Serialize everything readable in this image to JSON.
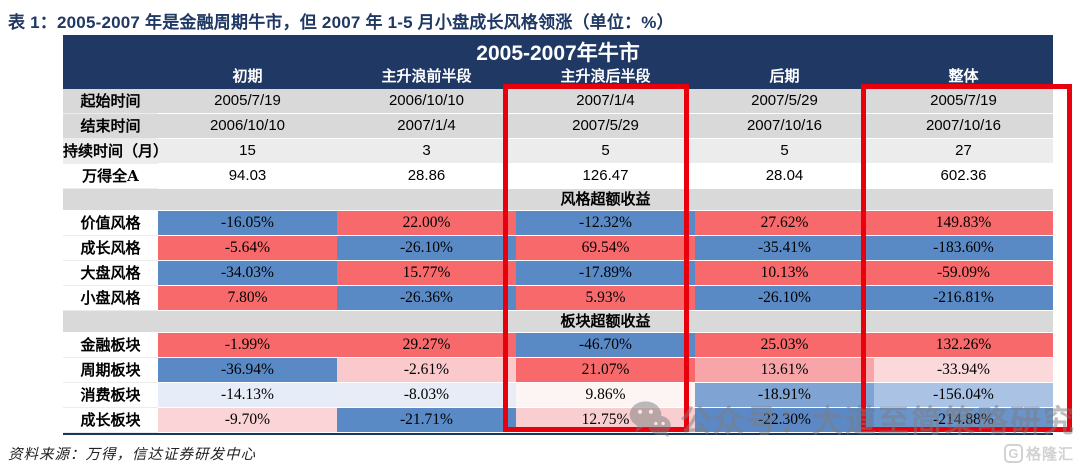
{
  "page_title": "表 1：2005-2007 年是金融周期牛市，但 2007 年 1-5 月小盘成长风格领涨（单位：%）",
  "table": {
    "header_title": "2005-2007年牛市",
    "column_headers": [
      "初期",
      "主升浪前半段",
      "主升浪后半段",
      "后期",
      "整体"
    ],
    "info_rows": [
      {
        "label": "起始时间",
        "bg": "#D9D9D9",
        "values": [
          "2005/7/19",
          "2006/10/10",
          "2007/1/4",
          "2007/5/29",
          "2005/7/19"
        ]
      },
      {
        "label": "结束时间",
        "bg": "#D9D9D9",
        "values": [
          "2006/10/10",
          "2007/1/4",
          "2007/5/29",
          "2007/10/16",
          "2007/10/16"
        ]
      },
      {
        "label": "持续时间（月）",
        "bg": "#ECECEC",
        "values": [
          "15",
          "3",
          "5",
          "5",
          "27"
        ]
      },
      {
        "label": "万得全A",
        "bg": "#FFFFFF",
        "values": [
          "94.03",
          "28.86",
          "126.47",
          "28.04",
          "602.36"
        ]
      }
    ],
    "style_section": {
      "title": "风格超额收益",
      "rows": [
        {
          "label": "价值风格",
          "cells": [
            {
              "text": "-16.05%",
              "bg": "#5A8AC6"
            },
            {
              "text": "22.00%",
              "bg": "#F8696B"
            },
            {
              "text": "-12.32%",
              "bg": "#5A8AC6"
            },
            {
              "text": "27.62%",
              "bg": "#F8696B"
            },
            {
              "text": "149.83%",
              "bg": "#F8696B"
            }
          ]
        },
        {
          "label": "成长风格",
          "cells": [
            {
              "text": "-5.64%",
              "bg": "#F8696B"
            },
            {
              "text": "-26.10%",
              "bg": "#5A8AC6"
            },
            {
              "text": "69.54%",
              "bg": "#F8696B"
            },
            {
              "text": "-35.41%",
              "bg": "#5A8AC6"
            },
            {
              "text": "-183.60%",
              "bg": "#5A8AC6"
            }
          ]
        },
        {
          "label": "大盘风格",
          "cells": [
            {
              "text": "-34.03%",
              "bg": "#5A8AC6"
            },
            {
              "text": "15.77%",
              "bg": "#F8696B"
            },
            {
              "text": "-17.89%",
              "bg": "#5A8AC6"
            },
            {
              "text": "10.13%",
              "bg": "#F8696B"
            },
            {
              "text": "-59.09%",
              "bg": "#F8696B"
            }
          ]
        },
        {
          "label": "小盘风格",
          "cells": [
            {
              "text": "7.80%",
              "bg": "#F8696B"
            },
            {
              "text": "-26.36%",
              "bg": "#5A8AC6"
            },
            {
              "text": "5.93%",
              "bg": "#F8696B"
            },
            {
              "text": "-26.10%",
              "bg": "#5A8AC6"
            },
            {
              "text": "-216.81%",
              "bg": "#5A8AC6"
            }
          ]
        }
      ]
    },
    "sector_section": {
      "title": "板块超额收益",
      "rows": [
        {
          "label": "金融板块",
          "cells": [
            {
              "text": "-1.99%",
              "bg": "#F8696B"
            },
            {
              "text": "29.27%",
              "bg": "#F8696B"
            },
            {
              "text": "-46.70%",
              "bg": "#5A8AC6"
            },
            {
              "text": "25.03%",
              "bg": "#F8696B"
            },
            {
              "text": "132.26%",
              "bg": "#F8696B"
            }
          ]
        },
        {
          "label": "周期板块",
          "cells": [
            {
              "text": "-36.94%",
              "bg": "#5A8AC6"
            },
            {
              "text": "-2.61%",
              "bg": "#F9C9CC"
            },
            {
              "text": "21.07%",
              "bg": "#F8696B"
            },
            {
              "text": "13.61%",
              "bg": "#F7A5A9"
            },
            {
              "text": "-33.94%",
              "bg": "#FBD9DB"
            }
          ]
        },
        {
          "label": "消费板块",
          "cells": [
            {
              "text": "-14.13%",
              "bg": "#E7EDF8"
            },
            {
              "text": "-8.03%",
              "bg": "#E7ECF7"
            },
            {
              "text": "9.86%",
              "bg": "#FDF4F4"
            },
            {
              "text": "-18.91%",
              "bg": "#7FA4D3"
            },
            {
              "text": "-156.04%",
              "bg": "#AAC2E3"
            }
          ]
        },
        {
          "label": "成长板块",
          "cells": [
            {
              "text": "-9.70%",
              "bg": "#FAD4D6"
            },
            {
              "text": "-21.71%",
              "bg": "#5A8AC6"
            },
            {
              "text": "12.75%",
              "bg": "#F9CED0"
            },
            {
              "text": "-22.30%",
              "bg": "#5C89C5"
            },
            {
              "text": "-214.88%",
              "bg": "#6B94CB"
            }
          ]
        }
      ]
    }
  },
  "footer": {
    "source": "资料来源：万得，信达证券研发中心"
  },
  "watermark": {
    "text": "公众号：大道至简策略研究"
  },
  "logo": {
    "mark": "G",
    "text": "格隆汇"
  },
  "colors": {
    "header_navy": "#1F3864",
    "highlight_red": "#E8000D",
    "scale_red": "#F8696B",
    "scale_blue": "#5A8AC6",
    "band_gray": "#D9D9D9"
  }
}
